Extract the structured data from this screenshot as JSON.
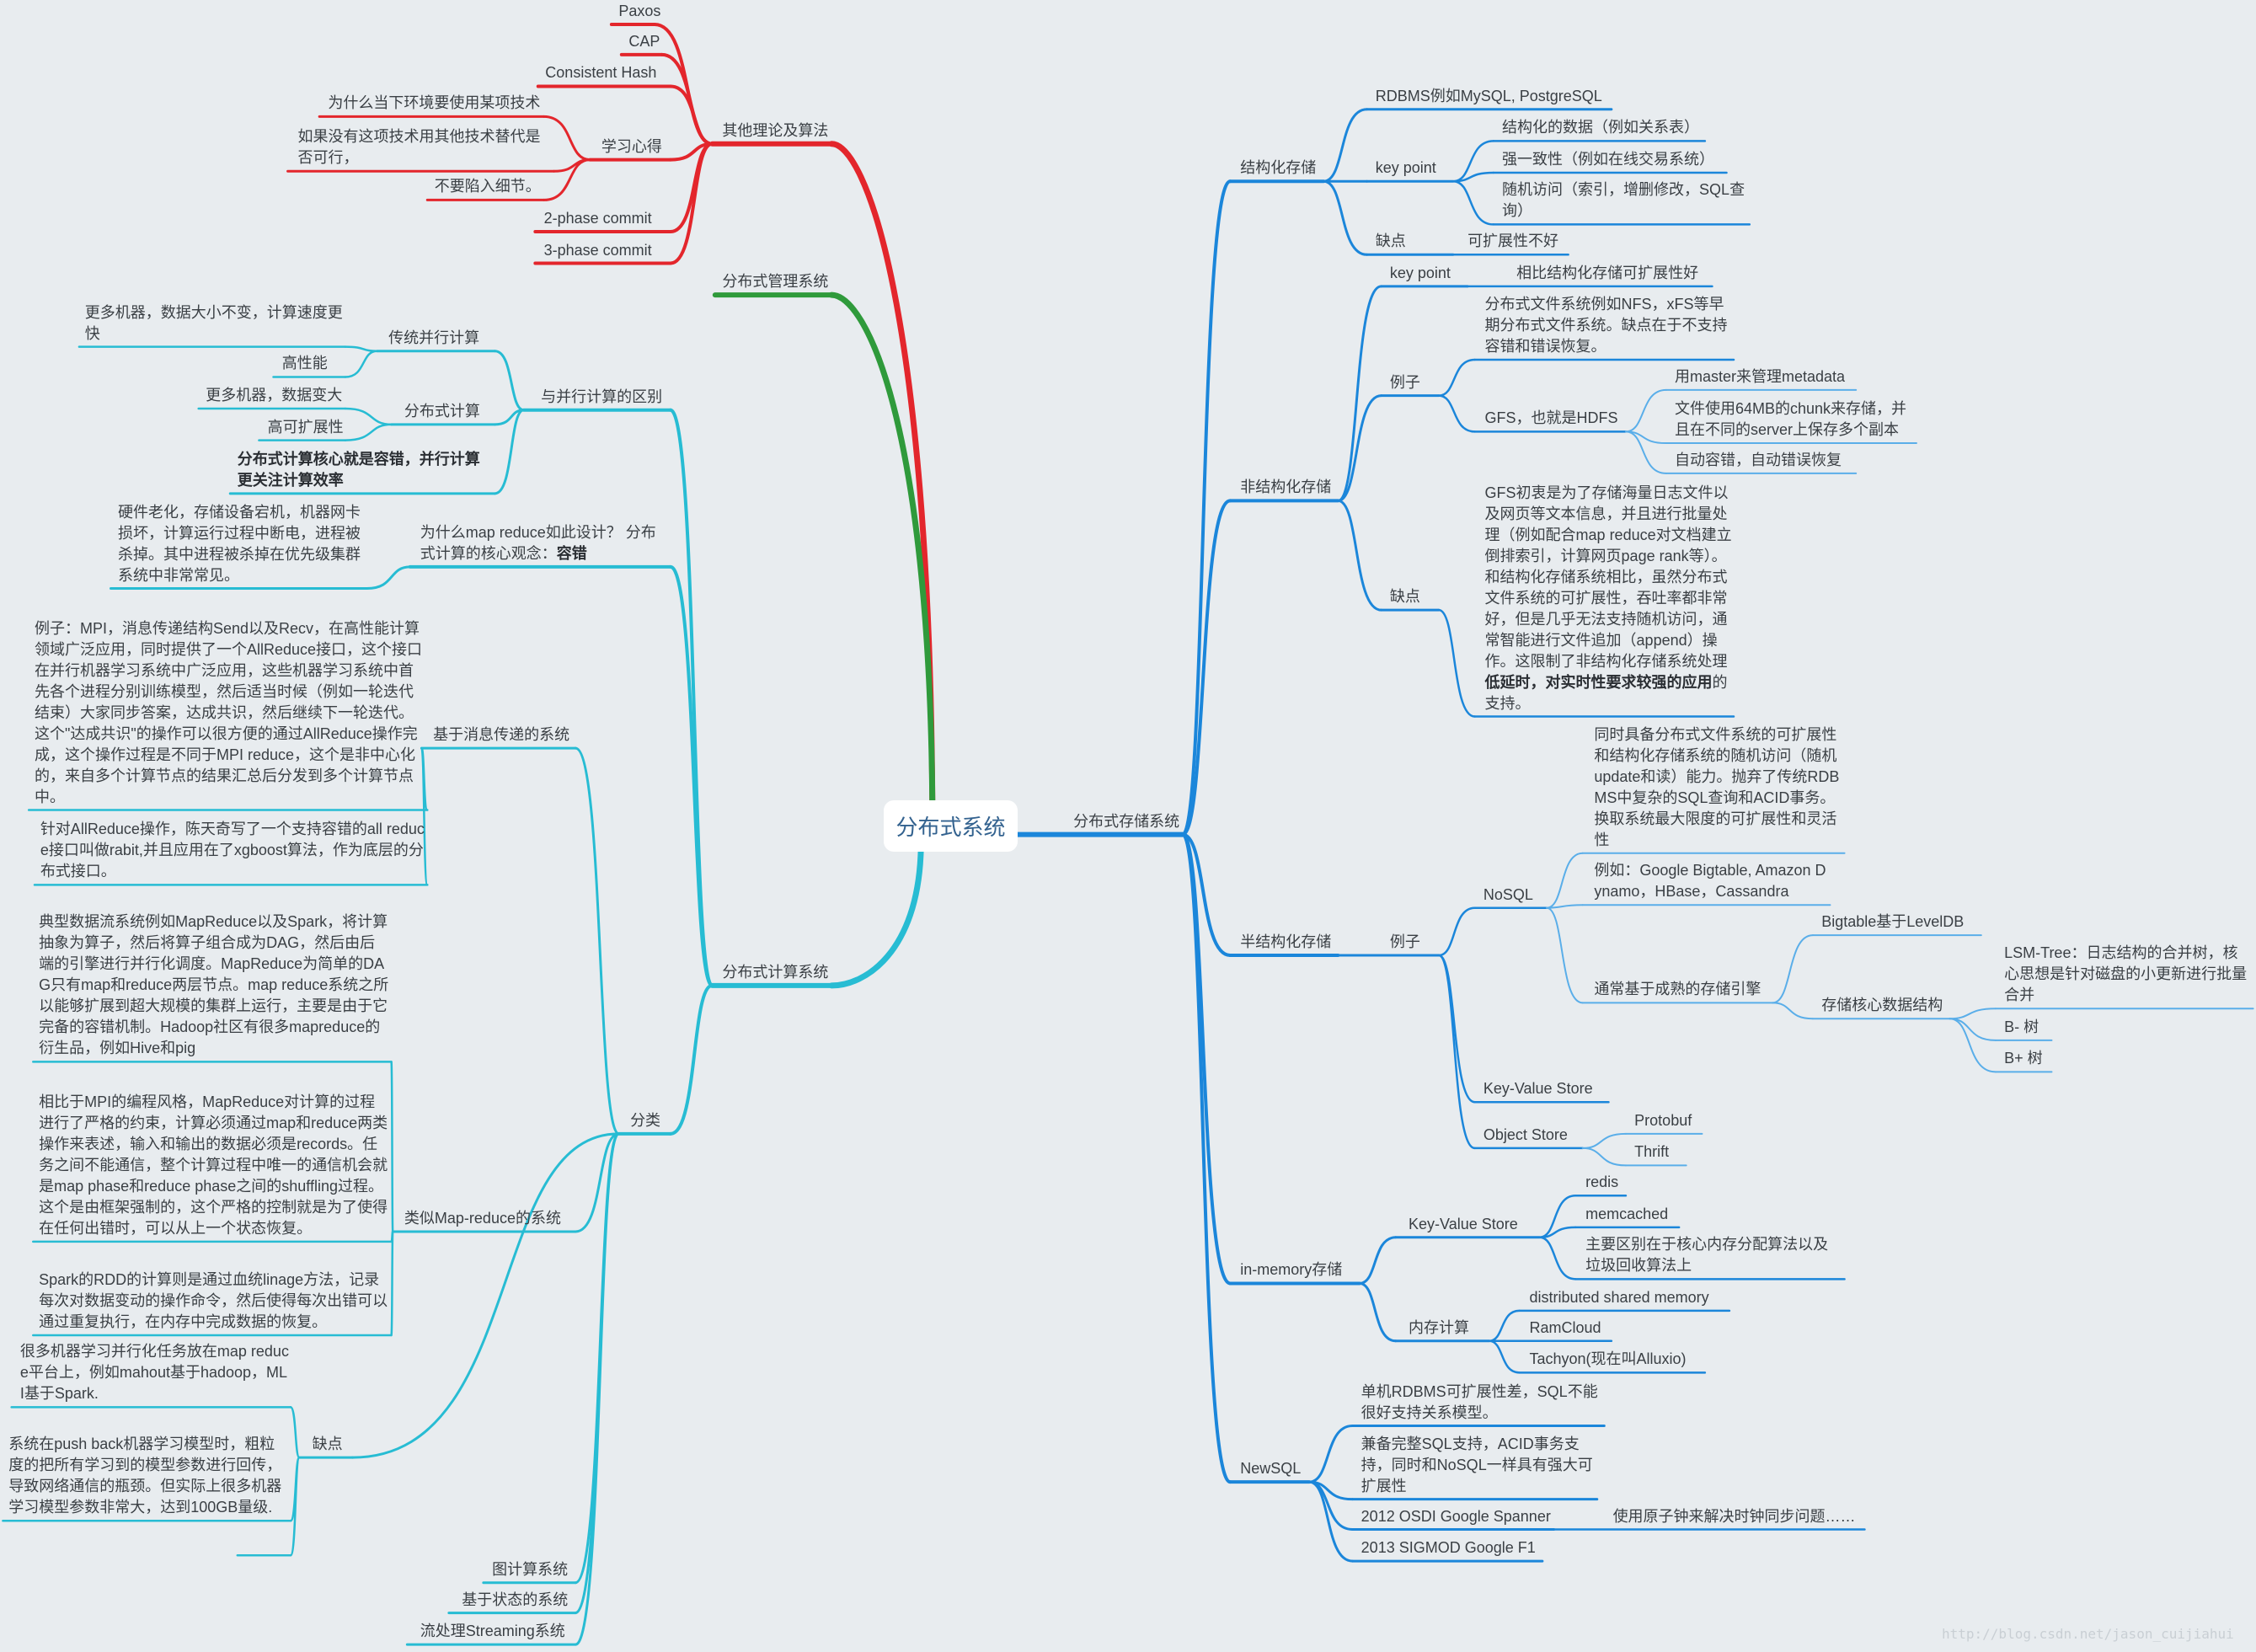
{
  "center": "分布式系统",
  "watermark": "http://blog.csdn.net/jason_cuijiahui",
  "colors": {
    "red": "#e3262c",
    "green": "#2f9a3b",
    "cyan": "#27bcd3",
    "blue": "#1b86da",
    "light_blue": "#5aaee9",
    "background": "#e8ecef"
  },
  "branches": [
    {
      "text": "其他理论及算法",
      "color": "#e3262c",
      "side": "left",
      "children": [
        {
          "text": "Paxos"
        },
        {
          "text": "CAP"
        },
        {
          "text": "Consistent Hash"
        },
        {
          "text": "学习心得",
          "children": [
            {
              "text": "为什么当下环境要使用某项技术"
            },
            {
              "text": "如果没有这项技术用其他技术替代是否可行，"
            },
            {
              "text": "不要陷入细节。"
            }
          ]
        },
        {
          "text": "2-phase commit"
        },
        {
          "text": "3-phase commit"
        }
      ]
    },
    {
      "text": "分布式管理系统",
      "color": "#2f9a3b",
      "side": "left"
    },
    {
      "text": "分布式计算系统",
      "color": "#27bcd3",
      "side": "left",
      "children": [
        {
          "text": "与并行计算的区别",
          "children": [
            {
              "text": "传统并行计算",
              "children": [
                {
                  "text": "更多机器，数据大小不变，计算速度更快"
                },
                {
                  "text": "高性能"
                }
              ]
            },
            {
              "text": "分布式计算",
              "children": [
                {
                  "text": "更多机器，数据变大"
                },
                {
                  "text": "高可扩展性"
                }
              ]
            },
            {
              "parts": [
                {
                  "t": "分布式计算核心就是容错，并行计算更关注计算效率",
                  "b": true
                }
              ]
            }
          ]
        },
        {
          "parts": [
            {
              "t": "为什么map reduce如此设计？ 分布式计算的核心观念："
            },
            {
              "t": "容错",
              "b": true
            }
          ],
          "children": [
            {
              "text": "硬件老化，存储设备宕机，机器网卡损坏，计算运行过程中断电，进程被杀掉。其中进程被杀掉在优先级集群系统中非常常见。"
            }
          ]
        },
        {
          "text": "分类",
          "children": [
            {
              "text": "基于消息传递的系统",
              "children": [
                {
                  "text": "例子：MPI，消息传递结构Send以及Recv，在高性能计算领域广泛应用，同时提供了一个AllReduce接口，这个接口在并行机器学习系统中广泛应用，这些机器学习系统中首先各个进程分别训练模型，然后适当时候（例如一轮迭代结束）大家同步答案，达成共识，然后继续下一轮迭代。这个\"达成共识\"的操作可以很方便的通过AllReduce操作完成，这个操作过程是不同于MPI reduce，这个是非中心化的，来自多个计算节点的结果汇总后分发到多个计算节点中。"
                },
                {
                  "text": "针对AllReduce操作，陈天奇写了一个支持容错的all reduce接口叫做rabit,并且应用在了xgboost算法，作为底层的分布式接口。"
                }
              ]
            },
            {
              "text": "类似Map-reduce的系统",
              "children": [
                {
                  "text": "典型数据流系统例如MapReduce以及Spark，将计算抽象为算子，然后将算子组合成为DAG，然后由后端的引擎进行并行化调度。MapReduce为简单的DAG只有map和reduce两层节点。map reduce系统之所以能够扩展到超大规模的集群上运行，主要是由于它完备的容错机制。Hadoop社区有很多mapreduce的衍生品，例如Hive和pig"
                },
                {
                  "text": "相比于MPI的编程风格，MapReduce对计算的过程进行了严格的约束，计算必须通过map和reduce两类操作来表述，输入和输出的数据必须是records。任务之间不能通信，整个计算过程中唯一的通信机会就是map phase和reduce phase之间的shuffling过程。这个是由框架强制的，这个严格的控制就是为了使得在任何出错时，可以从上一个状态恢复。"
                },
                {
                  "text": "Spark的RDD的计算则是通过血统linage方法，记录每次对数据变动的操作命令，然后使得每次出错可以通过重复执行，在内存中完成数据的恢复。"
                }
              ]
            },
            {
              "text": "缺点",
              "children": [
                {
                  "text": "很多机器学习并行化任务放在map reduce平台上，例如mahout基于hadoop，MLI基于Spark."
                },
                {
                  "text": "系统在push back机器学习模型时，粗粒度的把所有学习到的模型参数进行回传，导致网络通信的瓶颈。但实际上很多机器学习模型参数非常大，达到100GB量级."
                },
                {
                  "text": ""
                }
              ]
            },
            {
              "text": "图计算系统"
            },
            {
              "text": "基于状态的系统"
            },
            {
              "text": "流处理Streaming系统"
            }
          ]
        }
      ]
    },
    {
      "text": "分布式存储系统",
      "color": "#1b86da",
      "side": "right",
      "children": [
        {
          "text": "结构化存储",
          "children": [
            {
              "text": "RDBMS例如MySQL, PostgreSQL"
            },
            {
              "text": "key point",
              "children": [
                {
                  "text": "结构化的数据（例如关系表）"
                },
                {
                  "text": "强一致性（例如在线交易系统）"
                },
                {
                  "text": "随机访问（索引，增删修改，SQL查询）"
                }
              ]
            },
            {
              "text": "缺点",
              "children": [
                {
                  "text": "可扩展性不好"
                }
              ]
            }
          ]
        },
        {
          "text": "非结构化存储",
          "children": [
            {
              "text": "key point",
              "children": [
                {
                  "text": "相比结构化存储可扩展性好"
                }
              ]
            },
            {
              "text": "例子",
              "children": [
                {
                  "text": "分布式文件系统例如NFS，xFS等早期分布式文件系统。缺点在于不支持容错和错误恢复。"
                },
                {
                  "text": "GFS，也就是HDFS",
                  "children": [
                    {
                      "text": "用master来管理metadata"
                    },
                    {
                      "text": "文件使用64MB的chunk来存储，并且在不同的server上保存多个副本"
                    },
                    {
                      "text": "自动容错，自动错误恢复"
                    }
                  ]
                }
              ]
            },
            {
              "text": "缺点",
              "children": [
                {
                  "parts": [
                    {
                      "t": "GFS初衷是为了存储海量日志文件以及网页等文本信息，并且进行批量处理（例如配合map reduce对文档建立倒排索引，计算网页page rank等）。和结构化存储系统相比，虽然分布式文件系统的可扩展性，吞吐率都非常好，但是几乎无法支持随机访问，通常智能进行文件追加（append）操作。这限制了非结构化存储系统处理"
                    },
                    {
                      "t": "低延时，对实时性要求较强的应用",
                      "b": true
                    },
                    {
                      "t": "的支持。"
                    }
                  ]
                }
              ]
            }
          ]
        },
        {
          "text": "半结构化存储",
          "children": [
            {
              "text": "例子",
              "children": [
                {
                  "text": "NoSQL",
                  "children": [
                    {
                      "text": "同时具备分布式文件系统的可扩展性和结构化存储系统的随机访问（随机update和读）能力。抛弃了传统RDBMS中复杂的SQL查询和ACID事务。换取系统最大限度的可扩展性和灵活性"
                    },
                    {
                      "text": "例如：Google Bigtable, Amazon Dynamo，HBase，Cassandra"
                    },
                    {
                      "text": "通常基于成熟的存储引擎",
                      "children": [
                        {
                          "text": "Bigtable基于LevelDB"
                        },
                        {
                          "text": "存储核心数据结构",
                          "children": [
                            {
                              "text": "LSM-Tree：日志结构的合并树，核心思想是针对磁盘的小更新进行批量合并"
                            },
                            {
                              "text": "B- 树"
                            },
                            {
                              "text": "B+ 树"
                            }
                          ]
                        }
                      ]
                    }
                  ]
                },
                {
                  "text": "Key-Value Store"
                },
                {
                  "text": "Object Store",
                  "children": [
                    {
                      "text": "Protobuf"
                    },
                    {
                      "text": "Thrift"
                    }
                  ]
                }
              ]
            }
          ]
        },
        {
          "text": "in-memory存储",
          "children": [
            {
              "text": "Key-Value Store",
              "children": [
                {
                  "text": "redis"
                },
                {
                  "text": "memcached"
                },
                {
                  "text": "主要区别在于核心内存分配算法以及垃圾回收算法上"
                }
              ]
            },
            {
              "text": "内存计算",
              "children": [
                {
                  "text": "distributed shared memory"
                },
                {
                  "text": "RamCloud"
                },
                {
                  "text": "Tachyon(现在叫Alluxio)"
                }
              ]
            }
          ]
        },
        {
          "text": "NewSQL",
          "children": [
            {
              "text": "单机RDBMS可扩展性差，SQL不能很好支持关系模型。"
            },
            {
              "text": "兼备完整SQL支持，ACID事务支持，同时和NoSQL一样具有强大可扩展性"
            },
            {
              "text": "2012 OSDI Google Spanner",
              "children": [
                {
                  "text": "使用原子钟来解决时钟同步问题……"
                }
              ]
            },
            {
              "text": "2013 SIGMOD Google F1"
            }
          ]
        }
      ]
    }
  ]
}
